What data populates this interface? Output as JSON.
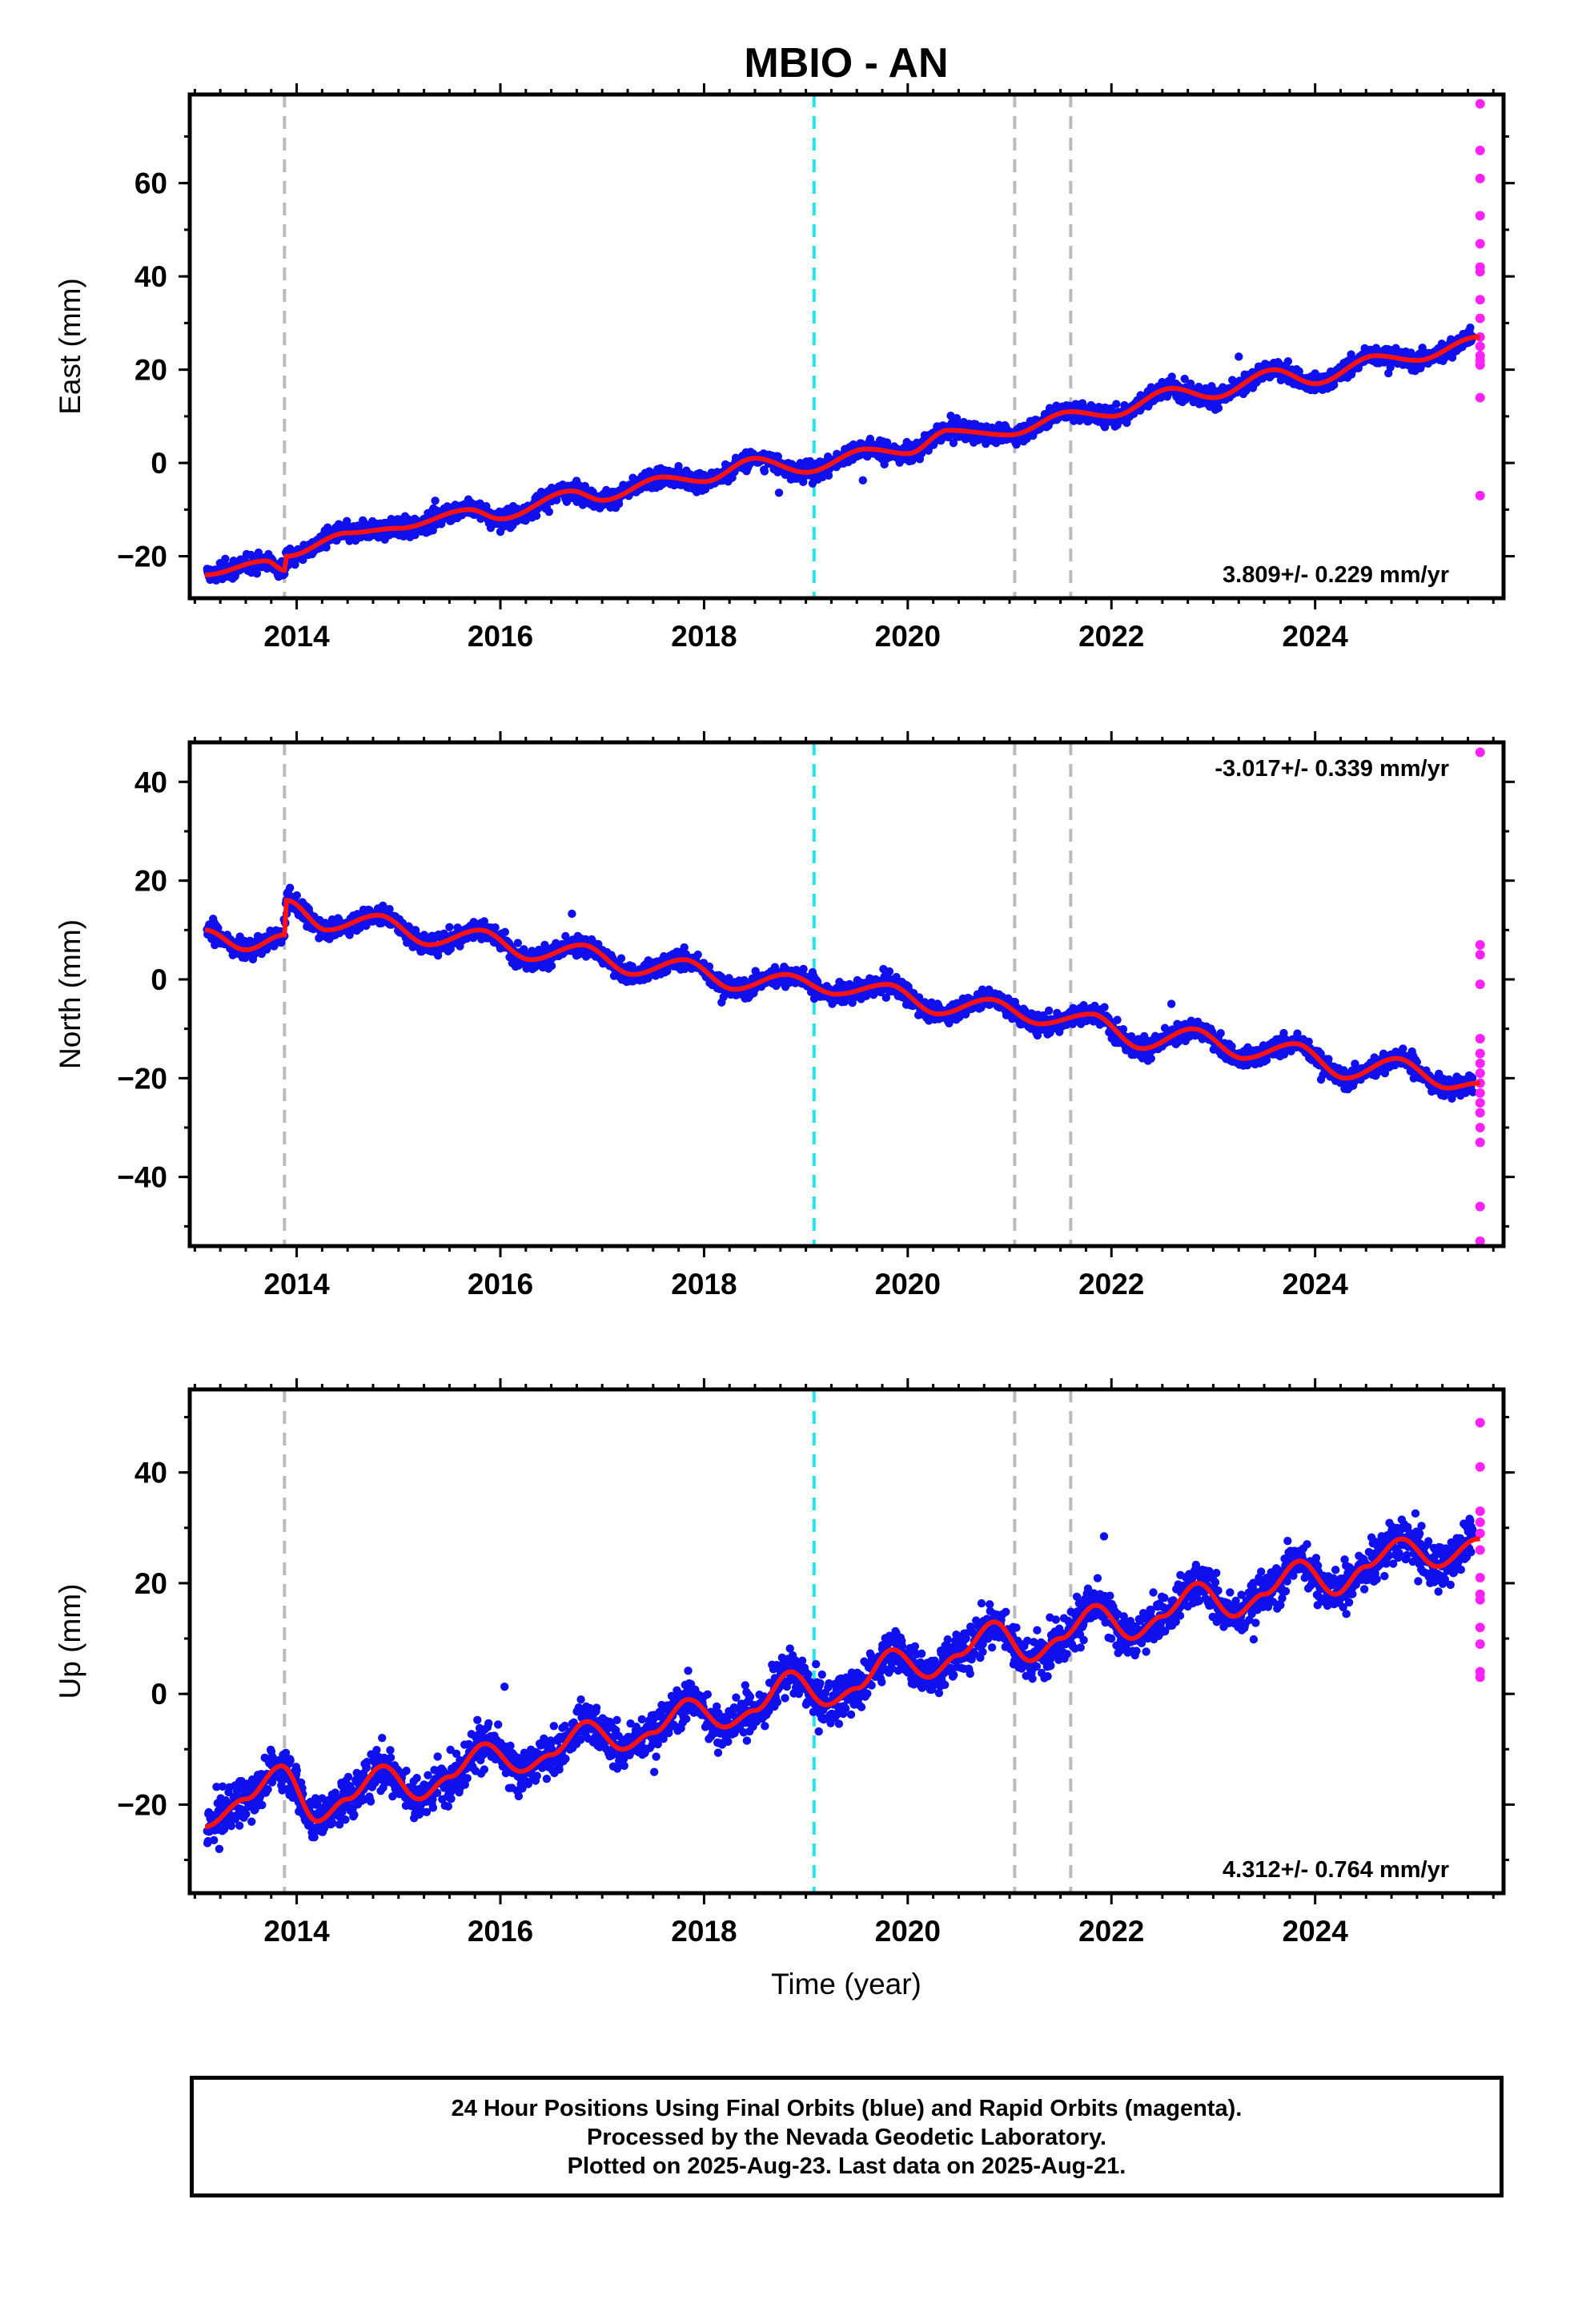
{
  "chart_data": {
    "title": "MBIO - AN",
    "type": "scatter",
    "xlabel": "Time (year)",
    "xlim": [
      2012.95,
      2025.85
    ],
    "xticks": [
      2014,
      2016,
      2018,
      2020,
      2022,
      2024
    ],
    "xtick_labels": [
      "2014",
      "2016",
      "2018",
      "2020",
      "2022",
      "2024"
    ],
    "markers": {
      "dashed_gray_lines_x": [
        2013.88,
        2021.05,
        2021.6
      ],
      "dashed_cyan_line_x": 2019.08
    },
    "colors": {
      "final_orbits": "#1010ee",
      "rapid_orbits": "#ff22ff",
      "model_fit": "#ff1111",
      "gray_marker": "#bbbbbb",
      "cyan_marker": "#22e5ee"
    },
    "panels": [
      {
        "name": "east",
        "ylabel": "East (mm)",
        "ylim": [
          -29,
          79
        ],
        "yticks": [
          -20,
          0,
          20,
          40,
          60
        ],
        "ytick_labels": [
          "−20",
          "0",
          "20",
          "40",
          "60"
        ],
        "rate": "3.809+/- 0.229 mm/yr",
        "rate_position": "bottom-right",
        "trend_knots": [
          [
            2013.1,
            -24
          ],
          [
            2013.7,
            -21
          ],
          [
            2013.88,
            -23
          ],
          [
            2013.9,
            -20
          ],
          [
            2014.5,
            -15
          ],
          [
            2015,
            -14
          ],
          [
            2015.7,
            -10
          ],
          [
            2016,
            -12
          ],
          [
            2016.7,
            -6
          ],
          [
            2017,
            -8
          ],
          [
            2017.6,
            -3
          ],
          [
            2018,
            -4
          ],
          [
            2018.5,
            1
          ],
          [
            2019,
            -2
          ],
          [
            2019.6,
            3
          ],
          [
            2020,
            2
          ],
          [
            2020.4,
            7
          ],
          [
            2021,
            6
          ],
          [
            2021.6,
            11
          ],
          [
            2022,
            10
          ],
          [
            2022.6,
            16
          ],
          [
            2023,
            14
          ],
          [
            2023.6,
            20
          ],
          [
            2024,
            17
          ],
          [
            2024.6,
            23
          ],
          [
            2025,
            22
          ],
          [
            2025.6,
            27
          ]
        ],
        "noise_mm": 2.5,
        "rapid_orbit_values": [
          77,
          67,
          61,
          53,
          47,
          42,
          41,
          35,
          31,
          27,
          25,
          23,
          22,
          21,
          14,
          -7
        ]
      },
      {
        "name": "north",
        "ylabel": "North (mm)",
        "ylim": [
          -54,
          48
        ],
        "yticks": [
          -40,
          -20,
          0,
          20,
          40
        ],
        "ytick_labels": [
          "−40",
          "−20",
          "0",
          "20",
          "40"
        ],
        "rate": "-3.017+/- 0.339 mm/yr",
        "rate_position": "top-right",
        "trend_knots": [
          [
            2013.1,
            10
          ],
          [
            2013.5,
            6
          ],
          [
            2013.88,
            9
          ],
          [
            2013.9,
            16
          ],
          [
            2014.3,
            10
          ],
          [
            2014.8,
            13
          ],
          [
            2015.3,
            7
          ],
          [
            2015.8,
            10
          ],
          [
            2016.3,
            4
          ],
          [
            2016.8,
            7
          ],
          [
            2017.3,
            1
          ],
          [
            2017.8,
            4
          ],
          [
            2018.3,
            -2
          ],
          [
            2018.8,
            1
          ],
          [
            2019.3,
            -3
          ],
          [
            2019.8,
            -1
          ],
          [
            2020.3,
            -7
          ],
          [
            2020.8,
            -4
          ],
          [
            2021.3,
            -9
          ],
          [
            2021.8,
            -7
          ],
          [
            2022.3,
            -14
          ],
          [
            2022.8,
            -10
          ],
          [
            2023.3,
            -16
          ],
          [
            2023.8,
            -13
          ],
          [
            2024.3,
            -20
          ],
          [
            2024.8,
            -16
          ],
          [
            2025.3,
            -22
          ],
          [
            2025.6,
            -21
          ]
        ],
        "noise_mm": 2.5,
        "rapid_orbit_values": [
          46,
          7,
          5,
          -1,
          -12,
          -15,
          -17,
          -19,
          -21,
          -23,
          -25,
          -27,
          -30,
          -33,
          -46,
          -53
        ]
      },
      {
        "name": "up",
        "ylabel": "Up (mm)",
        "ylim": [
          -36,
          55
        ],
        "yticks": [
          -20,
          0,
          20,
          40
        ],
        "ytick_labels": [
          "−20",
          "0",
          "20",
          "40"
        ],
        "rate": "4.312+/- 0.764 mm/yr",
        "rate_position": "bottom-right",
        "trend_knots": [
          [
            2013.1,
            -24
          ],
          [
            2013.5,
            -19
          ],
          [
            2013.85,
            -13
          ],
          [
            2014.2,
            -23
          ],
          [
            2014.5,
            -19
          ],
          [
            2014.85,
            -13
          ],
          [
            2015.2,
            -19
          ],
          [
            2015.5,
            -15
          ],
          [
            2015.85,
            -9
          ],
          [
            2016.2,
            -14
          ],
          [
            2016.5,
            -11
          ],
          [
            2016.85,
            -5
          ],
          [
            2017.2,
            -10
          ],
          [
            2017.5,
            -7
          ],
          [
            2017.85,
            -1
          ],
          [
            2018.2,
            -6
          ],
          [
            2018.5,
            -3
          ],
          [
            2018.85,
            4
          ],
          [
            2019.2,
            -2
          ],
          [
            2019.5,
            1
          ],
          [
            2019.85,
            8
          ],
          [
            2020.2,
            3
          ],
          [
            2020.5,
            7
          ],
          [
            2020.85,
            13
          ],
          [
            2021.2,
            6
          ],
          [
            2021.5,
            10
          ],
          [
            2021.85,
            16
          ],
          [
            2022.2,
            10
          ],
          [
            2022.5,
            14
          ],
          [
            2022.85,
            20
          ],
          [
            2023.2,
            14
          ],
          [
            2023.5,
            18
          ],
          [
            2023.85,
            24
          ],
          [
            2024.2,
            18
          ],
          [
            2024.5,
            23
          ],
          [
            2024.85,
            28
          ],
          [
            2025.2,
            23
          ],
          [
            2025.6,
            28
          ]
        ],
        "noise_mm": 5.0,
        "rapid_orbit_values": [
          49,
          41,
          33,
          31,
          29,
          26,
          21,
          18,
          17,
          12,
          9,
          4,
          3
        ]
      }
    ]
  },
  "footer": {
    "line1": "24 Hour Positions Using Final Orbits (blue) and Rapid Orbits (magenta).",
    "line2": "Processed by the Nevada Geodetic Laboratory.",
    "line3": "Plotted on 2025-Aug-23. Last data on 2025-Aug-21."
  }
}
